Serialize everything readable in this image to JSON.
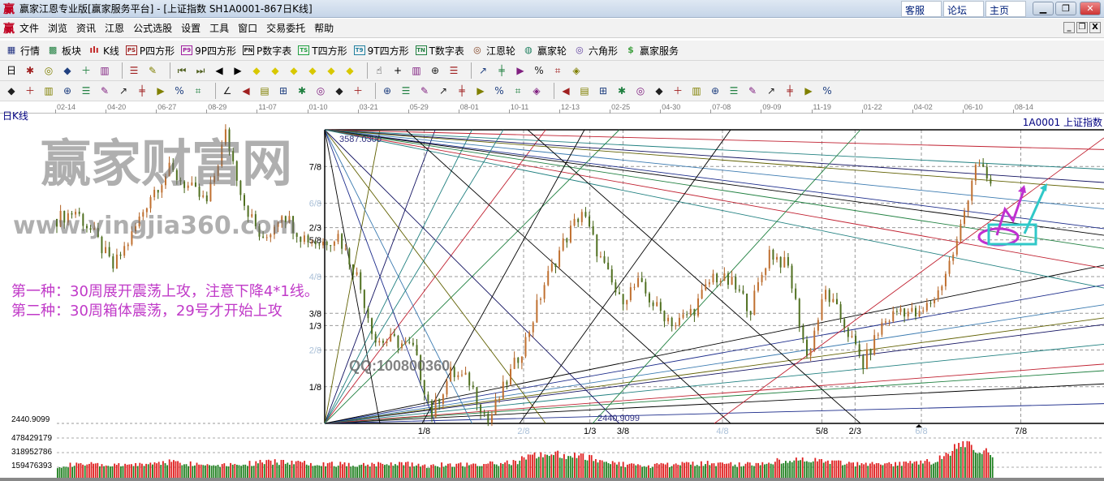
{
  "window": {
    "logo": "赢",
    "title": "赢家江恩专业版[赢家服务平台] - [上证指数  SH1A0001-867日K线]",
    "links": [
      "客服",
      "论坛",
      "主页"
    ]
  },
  "menu": {
    "logo": "赢",
    "items": [
      "文件",
      "浏览",
      "资讯",
      "江恩",
      "公式选股",
      "设置",
      "工具",
      "窗口",
      "交易委托",
      "帮助"
    ]
  },
  "toolbar1": [
    {
      "icon": "grid-table-icon",
      "glyph": "▦",
      "color": "#203080",
      "label": "行情"
    },
    {
      "icon": "blocks-icon",
      "glyph": "▩",
      "color": "#208040",
      "label": "板块"
    },
    {
      "icon": "candles-icon",
      "glyph": "ılı",
      "color": "#c02020",
      "label": "K线"
    },
    {
      "icon": "ps-icon",
      "glyph": "PS",
      "color": "#a02020",
      "label": "P四方形"
    },
    {
      "icon": "p9-icon",
      "glyph": "P9",
      "color": "#a020a0",
      "label": "9P四方形"
    },
    {
      "icon": "pn-icon",
      "glyph": "PN",
      "color": "#202020",
      "label": "P数字表"
    },
    {
      "icon": "ts-icon",
      "glyph": "TS",
      "color": "#20a040",
      "label": "T四方形"
    },
    {
      "icon": "t9-icon",
      "glyph": "T9",
      "color": "#2080a0",
      "label": "9T四方形"
    },
    {
      "icon": "tn-icon",
      "glyph": "TN",
      "color": "#208040",
      "label": "T数字表"
    },
    {
      "icon": "gann-wheel-icon",
      "glyph": "◎",
      "color": "#804020",
      "label": "江恩轮"
    },
    {
      "icon": "winner-wheel-icon",
      "glyph": "◍",
      "color": "#208060",
      "label": "赢家轮"
    },
    {
      "icon": "hexagon-icon",
      "glyph": "◎",
      "color": "#6040a0",
      "label": "六角形"
    },
    {
      "icon": "dollar-icon",
      "glyph": "$",
      "color": "#40a040",
      "label": "赢家服务"
    }
  ],
  "toolbar2": [
    "period-select-icon",
    "zoom-icon",
    "document-icon",
    "chart3-icon",
    "chart9-icon",
    "candle-select-icon",
    "|",
    "pattern-icon",
    "color-chart-icon",
    "|",
    "first-icon",
    "last-icon",
    "prev-icon",
    "next-icon",
    "arrow-left-diamond-icon",
    "arrow-right-diamond-icon",
    "diamond-h-icon",
    "diamond-x-icon",
    "diamond-cross-icon",
    "diamond-v-icon",
    "|",
    "hand-icon",
    "crosshair-icon",
    "line-tool-icon",
    "gear-shape-icon",
    "pattern2-icon",
    "|",
    "calendar-icon",
    "calculator-icon",
    "report-icon",
    "save-icon",
    "network-icon",
    "computer-icon"
  ],
  "toolbar3": [
    "pen-icon",
    "hash-icon",
    "gold-hash-icon",
    "gold-hash2-icon",
    "f-hash-icon",
    "spiral-icon",
    "pen2-icon",
    "circle-scale-icon",
    "hash2-icon",
    "n2-icon",
    "triangle-icon",
    "|",
    "circle-cross-icon",
    "web-icon",
    "square-spiral-icon",
    "slash-icon",
    "god-hash-icon",
    "winner-hash-icon",
    "ruler-icon",
    "span-icon",
    "|",
    "box-icon",
    "fan-icon",
    "grid-fan-icon",
    "grid-fan2-icon",
    "angle-icon",
    "v-icon",
    "grid-icon",
    "grid2-icon",
    "parallel-icon",
    "|",
    "table-icon",
    "percent-red-icon",
    "percent-icon",
    "percent-lines-icon",
    "gold-circle-icon",
    "gold-lines-icon",
    "marker-icon",
    "wave-icon",
    "gold-icon",
    "angle2-icon",
    "f-angle-icon",
    "gold-angle-icon",
    "god-angle-icon",
    "winner-angle-icon",
    "four-angle-icon"
  ],
  "chart": {
    "period_label": "日K线",
    "symbol_label": "1A0001  上证指数",
    "high_label": "3587.0300",
    "low_label": "2440.9099"
  },
  "chart_data": {
    "type": "candlestick",
    "x_tick_labels": [
      "02-14",
      "04-20",
      "06-27",
      "08-29",
      "11-07",
      "01-10",
      "03-21",
      "05-29",
      "08-01",
      "10-11",
      "12-13",
      "02-25",
      "04-30",
      "07-08",
      "09-09",
      "11-19",
      "01-22",
      "04-02",
      "06-10",
      "08-14"
    ],
    "ylim": [
      2440.9099,
      3587.03
    ],
    "close_path": [
      3239,
      3270,
      3175,
      3049,
      3175,
      3334,
      3429,
      3365,
      3302,
      3571,
      3302,
      3144,
      3270,
      3175,
      3144,
      3175,
      3017,
      2764,
      2764,
      2732,
      2479,
      2637,
      2606,
      2447,
      2606,
      2764,
      2985,
      3144,
      3270,
      3080,
      2922,
      2985,
      2890,
      2827,
      2890,
      3017,
      2985,
      2890,
      3112,
      3049,
      2700,
      2954,
      2827,
      2669,
      2827,
      2890,
      2859,
      2954,
      3144,
      3460,
      3350
    ],
    "gann_price_levels": [
      "7/8",
      "6/8",
      "2/3",
      "5/8",
      "4/8",
      "3/8",
      "1/3",
      "2/8",
      "1/8"
    ],
    "gann_time_levels": [
      "1/8",
      "2/8",
      "1/3",
      "3/8",
      "4/8",
      "5/8",
      "2/3",
      "6/8",
      "7/8"
    ],
    "volume_axis": [
      "478429179",
      "318952786",
      "159476393"
    ],
    "volume_path": [
      0.45,
      0.5,
      0.45,
      0.5,
      0.6,
      0.5,
      0.5,
      0.55,
      0.6,
      0.55,
      0.5,
      0.5,
      0.55,
      0.45,
      0.5,
      0.5,
      0.55,
      0.9,
      0.85,
      0.7,
      0.5,
      0.45,
      0.5,
      0.55,
      0.5,
      0.55,
      0.7,
      0.6,
      0.5,
      0.5,
      0.55,
      0.6,
      1.3,
      0.9
    ],
    "colors": {
      "up": "#e02020",
      "down": "#208020"
    }
  },
  "annotations": [
    "第一种：30周展开震荡上攻，注意下降4*1线。",
    "第二种：30周箱体震荡，29号才开始上攻"
  ],
  "watermark": {
    "brand": "赢家财富网",
    "url": "www.yingjia360.com",
    "qq": "QQ:100800360"
  }
}
